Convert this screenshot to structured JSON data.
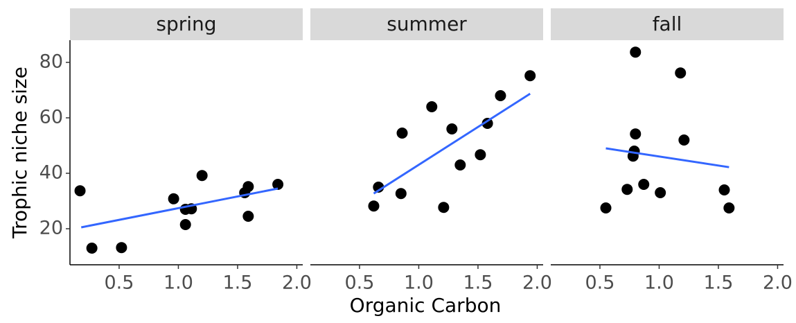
{
  "chart_data": {
    "type": "scatter",
    "x_label": "Organic Carbon",
    "y_label": "Trophic niche size",
    "xlim": [
      0.085,
      2.05
    ],
    "ylim": [
      7,
      88
    ],
    "xticks": [
      0.5,
      {
        "value": 1,
        "label": "1.0"
      },
      1.5,
      {
        "value": 2,
        "label": "2.0"
      }
    ],
    "yticks": [
      20,
      40,
      60,
      80
    ],
    "point_color": "#000000",
    "line_color": "#3366ff",
    "panels": [
      {
        "title": "spring",
        "x": [
          0.17,
          0.27,
          0.52,
          0.96,
          1.06,
          1.11,
          1.06,
          1.2,
          1.56,
          1.59,
          1.59,
          1.84
        ],
        "y": [
          33.7,
          13,
          13.2,
          30.8,
          27,
          27.2,
          21.5,
          39.2,
          33,
          35.2,
          24.5,
          36
        ],
        "fit": {
          "x": [
            0.18,
            1.84
          ],
          "y": [
            20.5,
            34.5
          ]
        }
      },
      {
        "title": "summer",
        "x": [
          0.62,
          0.66,
          0.85,
          0.86,
          1.11,
          1.21,
          1.28,
          1.35,
          1.52,
          1.58,
          1.69,
          1.94
        ],
        "y": [
          28.2,
          35,
          32.7,
          54.5,
          64,
          27.7,
          56,
          43,
          46.7,
          58,
          68,
          75.2
        ],
        "fit": {
          "x": [
            0.62,
            1.94
          ],
          "y": [
            32.7,
            68.7
          ]
        }
      },
      {
        "title": "fall",
        "x": [
          0.55,
          0.73,
          0.8,
          0.8,
          0.79,
          0.78,
          0.87,
          1.01,
          1.18,
          1.21,
          1.55,
          1.59
        ],
        "y": [
          27.5,
          34.2,
          83.7,
          54.2,
          48,
          46.2,
          36,
          33,
          76.2,
          52,
          34,
          27.5
        ],
        "fit": {
          "x": [
            0.55,
            1.59
          ],
          "y": [
            49,
            42.2
          ]
        }
      }
    ]
  }
}
